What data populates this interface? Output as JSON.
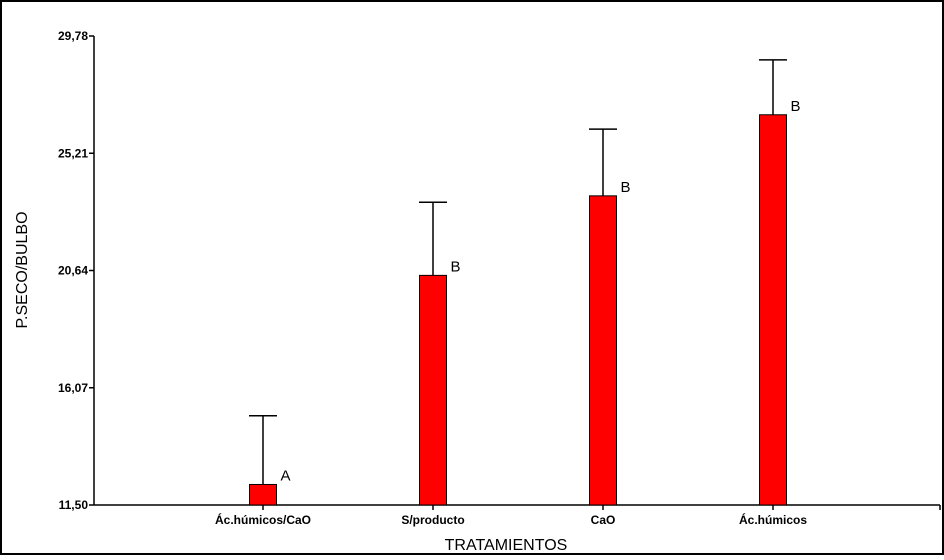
{
  "chart_data": {
    "type": "bar",
    "title": "",
    "xlabel": "TRATAMIENTOS",
    "ylabel": "P.SECO/BULBO",
    "categories": [
      "Ác.húmicos/CaO",
      "S/producto",
      "CaO",
      "Ác.húmicos"
    ],
    "values": [
      12.3,
      20.45,
      23.55,
      26.71
    ],
    "error_upper": [
      14.98,
      23.3,
      26.15,
      28.85
    ],
    "significance_letters": [
      "A",
      "B",
      "B",
      "B"
    ],
    "ylim": [
      11.5,
      29.78
    ],
    "yticks": [
      "11,50",
      "16,07",
      "20,64",
      "25,21",
      "29,78"
    ],
    "ytick_values": [
      11.5,
      16.07,
      20.64,
      25.21,
      29.78
    ],
    "bar_color": "#ff0000",
    "grid": false,
    "legend": "none"
  }
}
